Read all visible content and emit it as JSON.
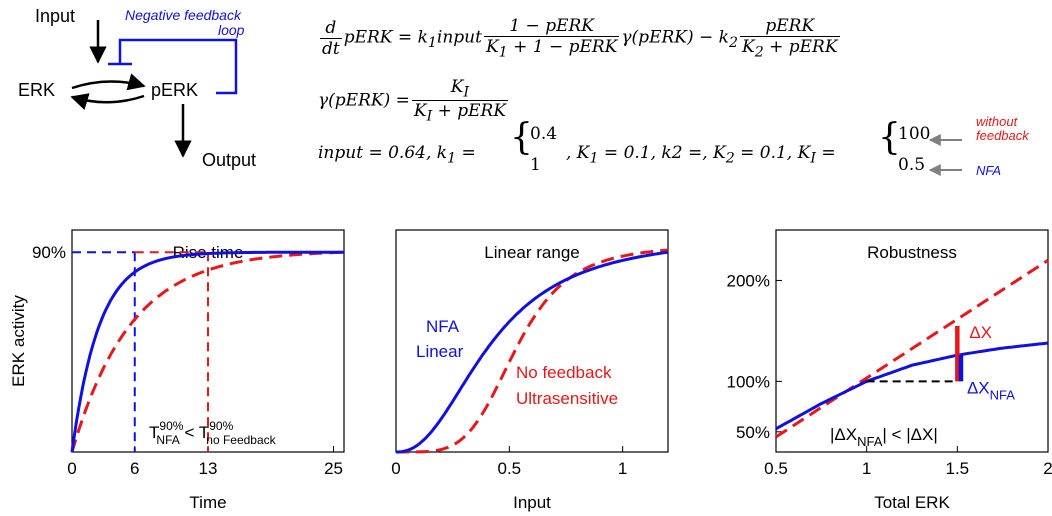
{
  "diagram": {
    "input_label": "Input",
    "erk_label": "ERK",
    "perk_label": "pERK",
    "output_label": "Output",
    "feedback_label_1": "Negative feedback",
    "feedback_label_2": "loop"
  },
  "equations": {
    "line1_lhs_num": "d",
    "line1_lhs_den": "dt",
    "line1_a": "pERK = k",
    "line1_a_sub": "1",
    "line1_b": "input",
    "line1_frac1_num": "1 − pERK",
    "line1_frac1_den": "K",
    "line1_frac1_den_sub": "1",
    "line1_frac1_den_rest": " + 1 − pERK",
    "line1_c": "γ(pERK) − k",
    "line1_c_sub": "2",
    "line1_frac2_num": "pERK",
    "line1_frac2_den": "K",
    "line1_frac2_den_sub": "2",
    "line1_frac2_den_rest": " + pERK",
    "line2_lhs": "γ(pERK) =",
    "line2_num": "K",
    "line2_num_sub": "I",
    "line2_den": "K",
    "line2_den_sub": "I",
    "line2_den_rest": " + pERK",
    "line3_a": "input = 0.64, k",
    "line3_a_sub": "1",
    "line3_eq": " =",
    "line3_k1_top": "0.4",
    "line3_k1_bot": "1",
    "line3_b": ", K",
    "line3_b_sub": "1",
    "line3_c": " = 0.1, k2 =, K",
    "line3_c_sub": "2",
    "line3_d": " = 0.1, K",
    "line3_d_sub": "I",
    "line3_eq2": " =",
    "line3_ki_top": "100",
    "line3_ki_bot": "0.5",
    "annot_without_1": "without",
    "annot_without_2": "feedback",
    "annot_nfa": "NFA"
  },
  "colors": {
    "blue": "#1010e0",
    "red": "#e81818",
    "gray": "#808080",
    "black": "#000000"
  },
  "chart_data": [
    {
      "type": "line",
      "title": "Rise time",
      "xlabel": "Time",
      "ylabel": "ERK activity",
      "xlim": [
        0,
        26
      ],
      "ylim": [
        0,
        1.0
      ],
      "xticks": [
        "0",
        "6",
        "13",
        "25"
      ],
      "xtick_values": [
        0,
        6,
        13,
        25
      ],
      "ytick_label": "90%",
      "ytick_value": 0.9,
      "series": [
        {
          "color": "blue",
          "style": "solid",
          "tau": 2.6,
          "plateau": 0.9
        },
        {
          "color": "red",
          "style": "dashed",
          "tau": 5.6,
          "plateau": 0.9
        }
      ],
      "guides": {
        "blue_x": 6,
        "red_x": 13,
        "level": 0.9
      },
      "annotation": {
        "t1": "T",
        "t1_sup": "90%",
        "t1_sub": "NFA",
        "op": " < ",
        "t2": "T",
        "t2_sup": "90%",
        "t2_sub": "no Feedback"
      }
    },
    {
      "type": "line",
      "title": "Linear range",
      "xlabel": "Input",
      "xlim": [
        0,
        1.2
      ],
      "ylim": [
        0,
        1.0
      ],
      "xticks": [
        "0",
        "0.5",
        "1"
      ],
      "xtick_values": [
        0,
        0.5,
        1
      ],
      "series": [
        {
          "color": "blue",
          "style": "solid",
          "K": 0.42,
          "n": 2.3,
          "max": 0.9
        },
        {
          "color": "red",
          "style": "dashed",
          "K": 0.53,
          "n": 4.5,
          "max": 0.91
        }
      ],
      "labels_blue": [
        "NFA",
        "Linear"
      ],
      "labels_red": [
        "No feedback",
        "Ultrasensitive"
      ]
    },
    {
      "type": "line",
      "title": "Robustness",
      "xlabel": "Total ERK",
      "xlim": [
        0.5,
        2
      ],
      "ylim": [
        30,
        250
      ],
      "xticks": [
        "0.5",
        "1",
        "1.5",
        "2"
      ],
      "xtick_values": [
        0.5,
        1,
        1.5,
        2
      ],
      "yticks": [
        "50%",
        "100%",
        "200%"
      ],
      "ytick_values": [
        50,
        100,
        200
      ],
      "series": [
        {
          "color": "blue",
          "style": "solid",
          "x": [
            0.5,
            0.75,
            1,
            1.25,
            1.5,
            1.75,
            2
          ],
          "y": [
            53,
            78,
            100,
            116,
            126,
            133,
            138
          ]
        },
        {
          "color": "red",
          "style": "dashed",
          "x": [
            0.5,
            2
          ],
          "y": [
            45,
            220
          ]
        }
      ],
      "baseline": {
        "x": [
          1,
          1.5
        ],
        "y": 100
      },
      "delta_x": {
        "label": "ΔX",
        "x": 1.5,
        "from": 100,
        "to": 155
      },
      "delta_x_nfa": {
        "label": "ΔX",
        "sub": "NFA",
        "x": 1.52,
        "from": 100,
        "to": 126
      },
      "annotation": {
        "a": "|ΔX",
        "a_sub": "NFA",
        "b": "| < |ΔX|"
      }
    }
  ]
}
